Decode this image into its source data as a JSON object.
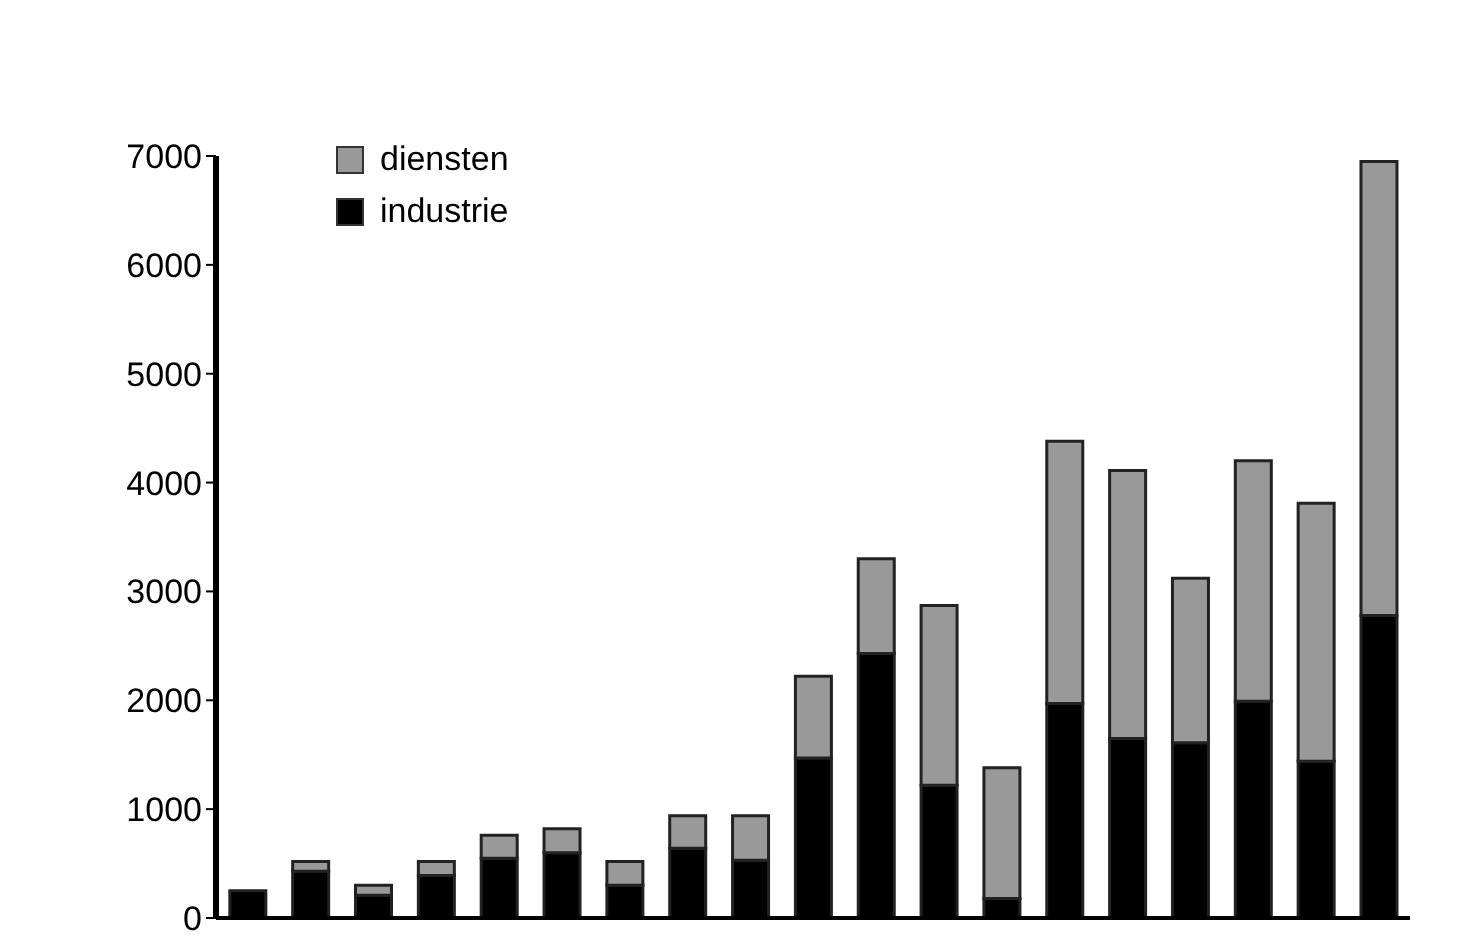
{
  "chart_data": {
    "type": "bar",
    "stacked": true,
    "categories": [
      null,
      null,
      null,
      null,
      null,
      null,
      null,
      null,
      null,
      null,
      null,
      null,
      null,
      null,
      null,
      null,
      null,
      null,
      null
    ],
    "series": [
      {
        "name": "industrie",
        "color": "#000000",
        "values": [
          250,
          430,
          210,
          390,
          550,
          600,
          300,
          640,
          530,
          1470,
          2430,
          1220,
          180,
          1970,
          1650,
          1610,
          1990,
          1440,
          2780
        ]
      },
      {
        "name": "diensten",
        "color": "#999999",
        "values": [
          0,
          90,
          90,
          130,
          210,
          220,
          220,
          300,
          410,
          750,
          870,
          1650,
          1200,
          2410,
          2460,
          1510,
          2210,
          2370,
          4170
        ]
      }
    ],
    "ylim": [
      0,
      7000
    ],
    "yticks": [
      0,
      1000,
      2000,
      3000,
      4000,
      5000,
      6000,
      7000
    ],
    "legend": "top left",
    "tick_labels": "y"
  }
}
